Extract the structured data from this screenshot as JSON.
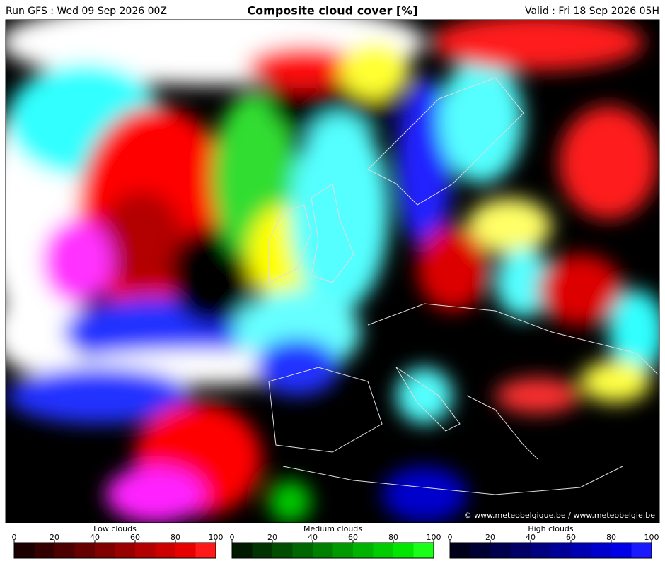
{
  "header": {
    "run": "Run GFS : Wed 09 Sep 2026 00Z",
    "title": "Composite cloud cover [%]",
    "valid": "Valid : Fri 18 Sep 2026 05H"
  },
  "map": {
    "credit": "© www.meteobelgique.be / www.meteobelgie.be"
  },
  "legends": [
    {
      "label": "Low clouds",
      "range": [
        0,
        100
      ],
      "ticks": [
        0,
        20,
        40,
        60,
        80,
        100
      ],
      "colors": [
        "#1a0000",
        "#330000",
        "#4d0000",
        "#660000",
        "#800000",
        "#990000",
        "#b30000",
        "#cc0000",
        "#e60000",
        "#ff1a1a"
      ]
    },
    {
      "label": "Medium clouds",
      "range": [
        0,
        100
      ],
      "ticks": [
        0,
        20,
        40,
        60,
        80,
        100
      ],
      "colors": [
        "#001a00",
        "#003300",
        "#004d00",
        "#006600",
        "#008000",
        "#009900",
        "#00b300",
        "#00cc00",
        "#00e600",
        "#1aff1a"
      ]
    },
    {
      "label": "High clouds",
      "range": [
        0,
        100
      ],
      "ticks": [
        0,
        20,
        40,
        60,
        80,
        100
      ],
      "colors": [
        "#00001a",
        "#000033",
        "#00004d",
        "#000066",
        "#000080",
        "#000099",
        "#0000b3",
        "#0000cc",
        "#0000e6",
        "#1a1aff"
      ]
    }
  ]
}
